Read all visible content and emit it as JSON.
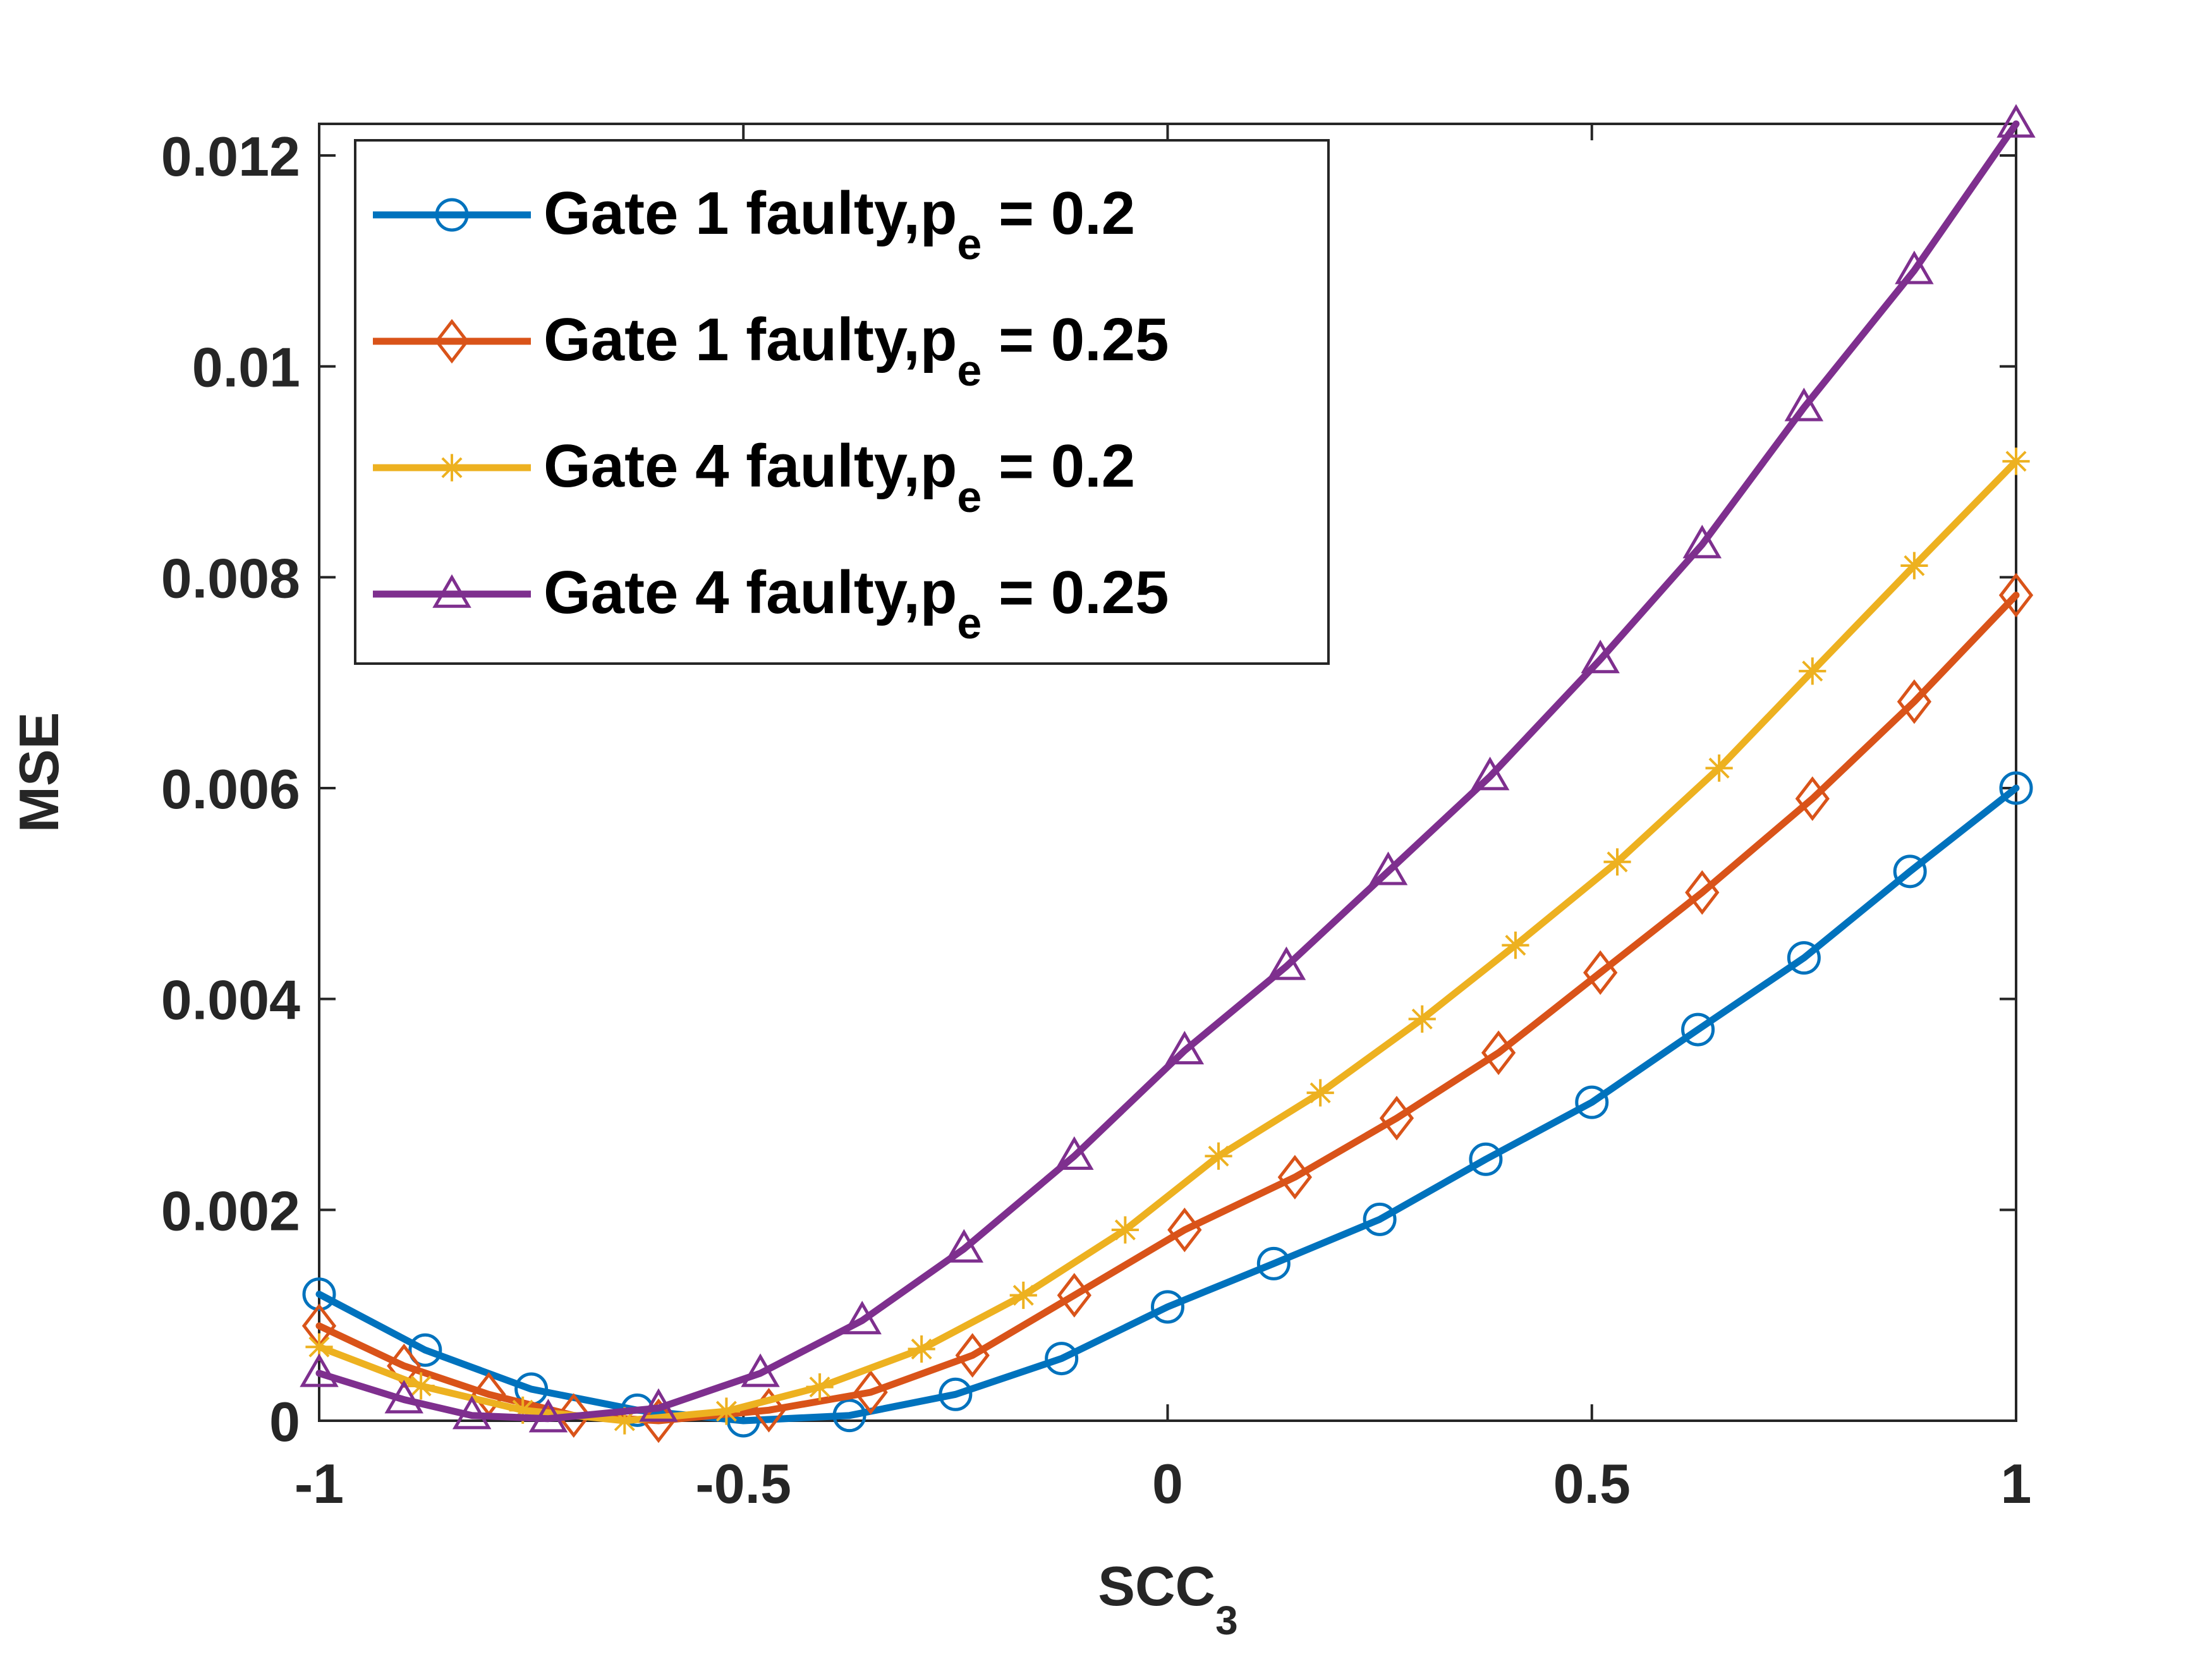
{
  "chart_data": {
    "type": "line",
    "title": "",
    "xlabel": "SCC",
    "xlabel_sub": "3",
    "ylabel": "MSE",
    "xlim": [
      -1,
      1
    ],
    "ylim": [
      0,
      0.0123
    ],
    "xticks": [
      -1,
      -0.5,
      0,
      0.5,
      1
    ],
    "xtick_labels": [
      "-1",
      "-0.5",
      "0",
      "0.5",
      "1"
    ],
    "yticks": [
      0,
      0.002,
      0.004,
      0.006,
      0.008,
      0.01,
      0.012
    ],
    "ytick_labels": [
      "0",
      "0.002",
      "0.004",
      "0.006",
      "0.008",
      "0.01",
      "0.012"
    ],
    "grid": false,
    "legend_position": "top-left",
    "series": [
      {
        "name": "Gate 1 faulty,p_e = 0.2",
        "label_main": "Gate 1 faulty,p",
        "label_sub": "e",
        "label_tail": " = 0.2",
        "color": "#0072BD",
        "marker": "circle",
        "x": [
          -1,
          -0.875,
          -0.75,
          -0.625,
          -0.5,
          -0.375,
          -0.25,
          -0.125,
          0,
          0.125,
          0.25,
          0.375,
          0.5,
          0.625,
          0.75,
          0.875,
          1
        ],
        "y": [
          0.0012,
          0.00067,
          0.0003,
          0.0001,
          0,
          5e-05,
          0.00025,
          0.00059,
          0.00108,
          0.00149,
          0.00191,
          0.00248,
          0.00302,
          0.00371,
          0.00439,
          0.00521,
          0.006
        ]
      },
      {
        "name": "Gate 1 faulty,p_e = 0.25",
        "label_main": "Gate 1 faulty,p",
        "label_sub": "e",
        "label_tail": " = 0.25",
        "color": "#D95319",
        "marker": "diamond",
        "x": [
          -1,
          -0.9,
          -0.8,
          -0.7,
          -0.6,
          -0.47,
          -0.35,
          -0.23,
          -0.11,
          0.02,
          0.15,
          0.27,
          0.39,
          0.51,
          0.63,
          0.76,
          0.88,
          1
        ],
        "y": [
          0.0009,
          0.00052,
          0.00025,
          5e-05,
          0,
          0.0001,
          0.00027,
          0.00062,
          0.00119,
          0.00181,
          0.00231,
          0.00287,
          0.00349,
          0.00425,
          0.00501,
          0.0059,
          0.00682,
          0.00783
        ]
      },
      {
        "name": "Gate 4 faulty,p_e = 0.2",
        "label_main": "Gate 4 faulty,p",
        "label_sub": "e",
        "label_tail": " = 0.2",
        "color": "#EDB120",
        "marker": "asterisk",
        "x": [
          -1,
          -0.88,
          -0.76,
          -0.64,
          -0.52,
          -0.41,
          -0.29,
          -0.17,
          -0.05,
          0.06,
          0.18,
          0.3,
          0.41,
          0.53,
          0.65,
          0.76,
          0.88,
          1
        ],
        "y": [
          0.0007,
          0.00033,
          0.0001,
          0,
          9e-05,
          0.00032,
          0.00068,
          0.00119,
          0.00181,
          0.00251,
          0.00311,
          0.00381,
          0.00451,
          0.0053,
          0.00619,
          0.00711,
          0.00811,
          0.0091
        ]
      },
      {
        "name": "Gate 4 faulty,p_e = 0.25",
        "label_main": "Gate 4 faulty,p",
        "label_sub": "e",
        "label_tail": " = 0.25",
        "color": "#7E2F8E",
        "marker": "triangle",
        "x": [
          -1,
          -0.9,
          -0.82,
          -0.73,
          -0.6,
          -0.48,
          -0.36,
          -0.24,
          -0.11,
          0.02,
          0.14,
          0.26,
          0.38,
          0.51,
          0.63,
          0.75,
          0.88,
          1
        ],
        "y": [
          0.00045,
          0.0002,
          5e-05,
          2e-05,
          0.00012,
          0.00045,
          0.00095,
          0.00163,
          0.00251,
          0.00351,
          0.00431,
          0.00521,
          0.00611,
          0.00722,
          0.00831,
          0.00961,
          0.01091,
          0.0123
        ]
      }
    ]
  }
}
